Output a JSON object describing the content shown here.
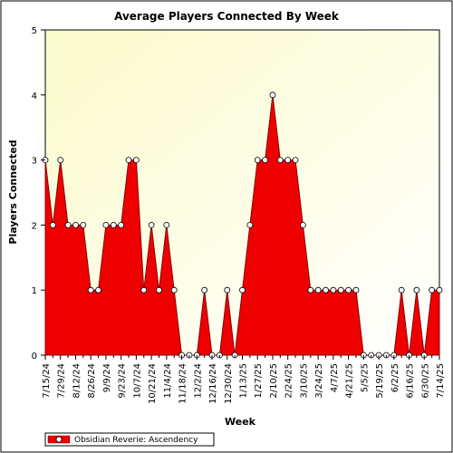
{
  "chart_data": {
    "type": "area",
    "title": "Average Players Connected By Week",
    "xlabel": "Week",
    "ylabel": "Players Connected",
    "ylim": [
      0,
      5
    ],
    "yticks": [
      0,
      1,
      2,
      3,
      4,
      5
    ],
    "grid": false,
    "legend_position": "bottom-left",
    "x_tick_labels": [
      "7/15/24",
      "7/29/24",
      "8/12/24",
      "8/26/24",
      "9/9/24",
      "9/23/24",
      "10/7/24",
      "10/21/24",
      "11/4/24",
      "11/18/24",
      "12/2/24",
      "12/16/24",
      "12/30/24",
      "1/13/25",
      "1/27/25",
      "2/10/25",
      "2/24/25",
      "3/10/25",
      "3/24/25",
      "4/7/25",
      "4/21/25",
      "5/5/25",
      "5/19/25",
      "6/2/25",
      "6/16/25",
      "6/30/25",
      "7/14/25"
    ],
    "x": [
      "7/15/24",
      "7/22/24",
      "7/29/24",
      "8/5/24",
      "8/12/24",
      "8/19/24",
      "8/26/24",
      "9/2/24",
      "9/9/24",
      "9/16/24",
      "9/23/24",
      "9/30/24",
      "10/7/24",
      "10/14/24",
      "10/21/24",
      "10/28/24",
      "11/4/24",
      "11/11/24",
      "11/18/24",
      "11/25/24",
      "12/2/24",
      "12/9/24",
      "12/16/24",
      "12/23/24",
      "12/30/24",
      "1/6/25",
      "1/13/25",
      "1/20/25",
      "1/27/25",
      "2/3/25",
      "2/10/25",
      "2/17/25",
      "2/24/25",
      "3/3/25",
      "3/10/25",
      "3/17/25",
      "3/24/25",
      "3/31/25",
      "4/7/25",
      "4/14/25",
      "4/21/25",
      "4/28/25",
      "5/5/25",
      "5/12/25",
      "5/19/25",
      "5/26/25",
      "6/2/25",
      "6/9/25",
      "6/16/25",
      "6/23/25",
      "6/30/25",
      "7/7/25",
      "7/14/25"
    ],
    "series": [
      {
        "name": "Obsidian Reverie: Ascendency",
        "values": [
          3,
          2,
          3,
          2,
          2,
          2,
          1,
          1,
          2,
          2,
          2,
          3,
          3,
          1,
          2,
          1,
          2,
          1,
          0,
          0,
          0,
          1,
          0,
          0,
          1,
          0,
          1,
          2,
          3,
          3,
          4,
          3,
          3,
          3,
          2,
          1,
          1,
          1,
          1,
          1,
          1,
          1,
          0,
          0,
          0,
          0,
          0,
          1,
          0,
          1,
          0,
          1,
          1
        ]
      }
    ]
  },
  "colors": {
    "area_fill": "#ee0000",
    "area_stroke": "#880000",
    "plot_bg_top": "#fbfbcc",
    "plot_bg_bottom": "#ffffff",
    "marker_fill": "#ffffff"
  }
}
